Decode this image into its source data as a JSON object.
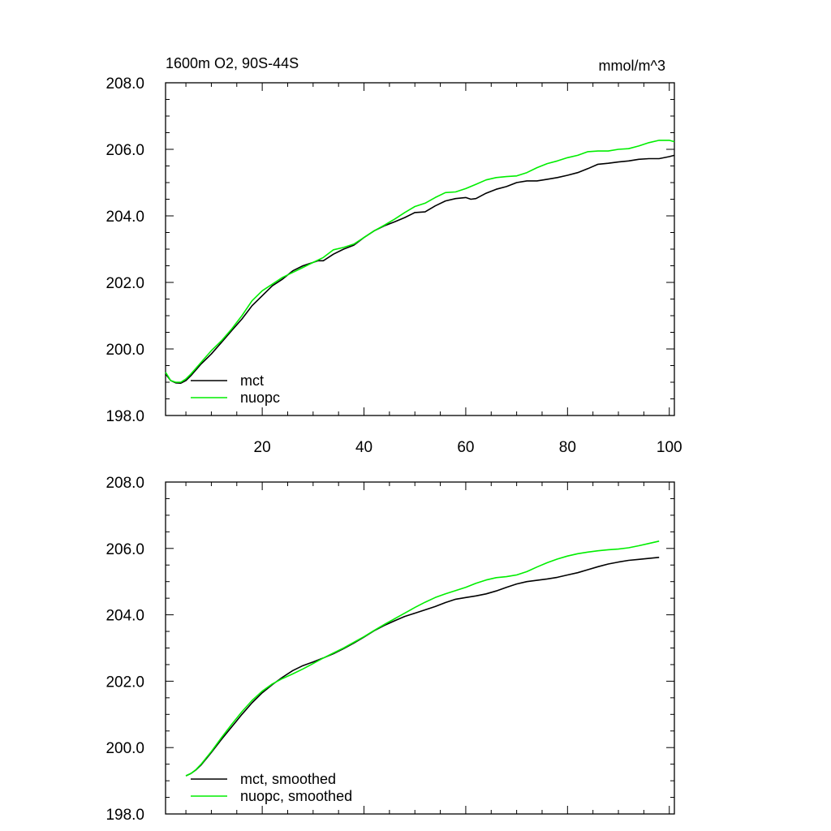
{
  "chart_data": [
    {
      "type": "line",
      "title": "1600m O2, 90S-44S",
      "units": "mmol/m^3",
      "xlim": [
        1,
        101
      ],
      "ylim": [
        198,
        208
      ],
      "x_major_ticks": [
        20,
        40,
        60,
        80,
        100
      ],
      "x_tick_labels": [
        "20",
        "40",
        "60",
        "80",
        "100"
      ],
      "y_major_ticks": [
        198,
        200,
        202,
        204,
        206,
        208
      ],
      "y_tick_labels": [
        "198.0",
        "200.0",
        "202.0",
        "204.0",
        "206.0",
        "208.0"
      ],
      "legend_position": "bottom-left",
      "series": [
        {
          "name": "mct",
          "color": "#000000",
          "x": [
            1,
            2,
            3,
            4,
            5,
            6,
            8,
            10,
            12,
            14,
            16,
            18,
            20,
            22,
            24,
            26,
            28,
            30,
            31,
            32,
            34,
            36,
            38,
            40,
            42,
            44,
            46,
            48,
            50,
            52,
            54,
            56,
            58,
            60,
            61,
            62,
            64,
            66,
            68,
            70,
            72,
            74,
            76,
            78,
            80,
            82,
            84,
            86,
            88,
            90,
            92,
            94,
            96,
            98,
            100,
            101
          ],
          "values": [
            199.25,
            199.05,
            198.98,
            198.97,
            199.05,
            199.2,
            199.55,
            199.85,
            200.2,
            200.55,
            200.9,
            201.3,
            201.6,
            201.9,
            202.1,
            202.35,
            202.5,
            202.6,
            202.65,
            202.65,
            202.85,
            203.0,
            203.12,
            203.35,
            203.55,
            203.7,
            203.82,
            203.95,
            204.1,
            204.12,
            204.3,
            204.45,
            204.52,
            204.55,
            204.5,
            204.52,
            204.68,
            204.8,
            204.88,
            205.0,
            205.05,
            205.05,
            205.1,
            205.15,
            205.22,
            205.3,
            205.42,
            205.55,
            205.58,
            205.62,
            205.65,
            205.7,
            205.72,
            205.72,
            205.78,
            205.82
          ]
        },
        {
          "name": "nuopc",
          "color": "#00ee00",
          "x": [
            1,
            2,
            3,
            4,
            5,
            6,
            8,
            10,
            12,
            14,
            16,
            18,
            20,
            22,
            24,
            26,
            28,
            30,
            32,
            34,
            36,
            38,
            40,
            42,
            44,
            46,
            48,
            50,
            52,
            54,
            56,
            58,
            60,
            62,
            64,
            66,
            68,
            70,
            72,
            74,
            76,
            78,
            80,
            82,
            84,
            86,
            88,
            90,
            92,
            94,
            96,
            98,
            100,
            101
          ],
          "values": [
            199.3,
            199.05,
            199.0,
            199.0,
            199.1,
            199.25,
            199.6,
            199.95,
            200.25,
            200.6,
            201.0,
            201.45,
            201.75,
            201.95,
            202.15,
            202.3,
            202.45,
            202.6,
            202.75,
            202.98,
            203.05,
            203.15,
            203.35,
            203.55,
            203.72,
            203.9,
            204.1,
            204.28,
            204.38,
            204.55,
            204.7,
            204.72,
            204.82,
            204.95,
            205.08,
            205.15,
            205.18,
            205.2,
            205.3,
            205.45,
            205.57,
            205.65,
            205.75,
            205.82,
            205.93,
            205.95,
            205.95,
            206.0,
            206.02,
            206.1,
            206.2,
            206.27,
            206.27,
            206.23
          ]
        }
      ]
    },
    {
      "type": "line",
      "title": "",
      "units": "",
      "xlim": [
        1,
        101
      ],
      "ylim": [
        198,
        208
      ],
      "x_major_ticks": [
        20,
        40,
        60,
        80,
        100
      ],
      "x_tick_labels": [],
      "y_major_ticks": [
        198,
        200,
        202,
        204,
        206,
        208
      ],
      "y_tick_labels": [
        "198.0",
        "200.0",
        "202.0",
        "204.0",
        "206.0",
        "208.0"
      ],
      "legend_position": "bottom-left",
      "series": [
        {
          "name": "mct, smoothed",
          "color": "#000000",
          "x": [
            5,
            6,
            7,
            8,
            10,
            12,
            14,
            16,
            18,
            20,
            22,
            24,
            26,
            28,
            30,
            32,
            34,
            36,
            38,
            40,
            42,
            44,
            46,
            48,
            50,
            52,
            54,
            56,
            58,
            60,
            62,
            64,
            66,
            68,
            70,
            72,
            74,
            76,
            78,
            80,
            82,
            84,
            86,
            88,
            90,
            92,
            94,
            96,
            98
          ],
          "values": [
            199.15,
            199.22,
            199.33,
            199.48,
            199.85,
            200.25,
            200.62,
            201.0,
            201.35,
            201.65,
            201.9,
            202.12,
            202.32,
            202.47,
            202.58,
            202.7,
            202.83,
            202.98,
            203.15,
            203.33,
            203.52,
            203.68,
            203.82,
            203.95,
            204.05,
            204.15,
            204.25,
            204.37,
            204.47,
            204.52,
            204.57,
            204.63,
            204.72,
            204.83,
            204.93,
            205.0,
            205.04,
            205.08,
            205.13,
            205.2,
            205.27,
            205.36,
            205.45,
            205.53,
            205.59,
            205.64,
            205.67,
            205.7,
            205.73
          ]
        },
        {
          "name": "nuopc, smoothed",
          "color": "#00ee00",
          "x": [
            5,
            6,
            7,
            8,
            10,
            12,
            14,
            16,
            18,
            20,
            22,
            24,
            26,
            28,
            30,
            32,
            34,
            36,
            38,
            40,
            42,
            44,
            46,
            48,
            50,
            52,
            54,
            56,
            58,
            60,
            62,
            64,
            66,
            68,
            70,
            72,
            74,
            76,
            78,
            80,
            82,
            84,
            86,
            88,
            90,
            92,
            94,
            96,
            98
          ],
          "values": [
            199.15,
            199.22,
            199.34,
            199.5,
            199.88,
            200.3,
            200.7,
            201.08,
            201.42,
            201.7,
            201.92,
            202.08,
            202.22,
            202.37,
            202.53,
            202.7,
            202.85,
            203.0,
            203.17,
            203.34,
            203.53,
            203.71,
            203.88,
            204.05,
            204.22,
            204.38,
            204.52,
            204.63,
            204.73,
            204.83,
            204.95,
            205.05,
            205.12,
            205.15,
            205.2,
            205.3,
            205.44,
            205.57,
            205.68,
            205.77,
            205.84,
            205.89,
            205.93,
            205.96,
            205.98,
            206.02,
            206.08,
            206.15,
            206.22
          ]
        }
      ]
    }
  ]
}
